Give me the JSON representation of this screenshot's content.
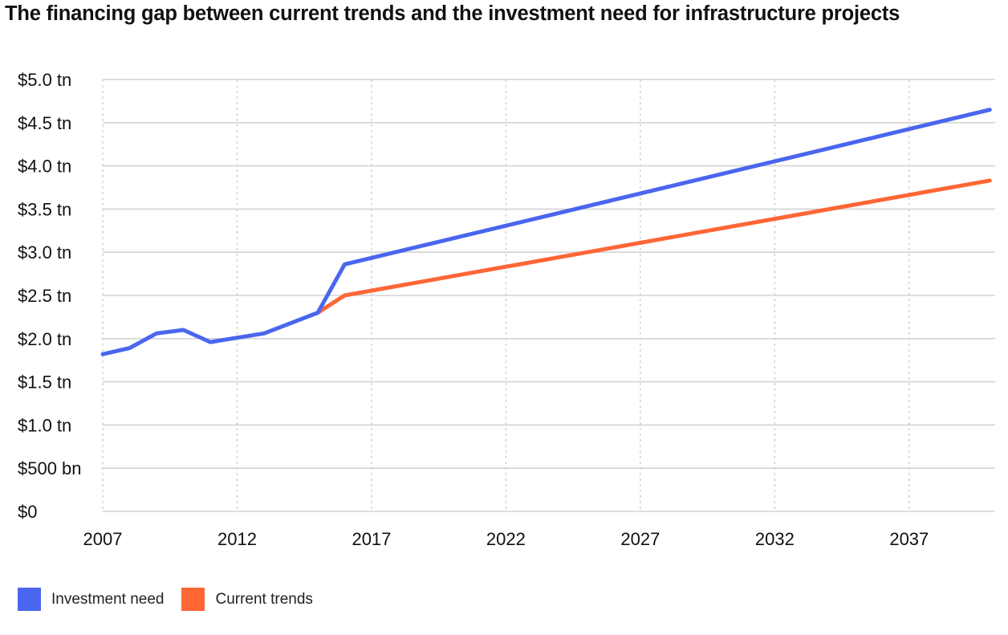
{
  "chart_data": {
    "type": "line",
    "title": "The financing gap between current trends and the investment need for infrastructure projects",
    "xlabel": "",
    "ylabel": "",
    "xlim": [
      2007,
      2040.2
    ],
    "ylim": [
      0,
      5.0
    ],
    "x_ticks": [
      2007,
      2012,
      2017,
      2022,
      2027,
      2032,
      2037
    ],
    "x_tick_labels": [
      "2007",
      "2012",
      "2017",
      "2022",
      "2027",
      "2032",
      "2037"
    ],
    "y_ticks": [
      0,
      0.5,
      1.0,
      1.5,
      2.0,
      2.5,
      3.0,
      3.5,
      4.0,
      4.5,
      5.0
    ],
    "y_tick_labels": [
      "$0",
      "$500 bn",
      "$1.0 tn",
      "$1.5 tn",
      "$2.0 tn",
      "$2.5 tn",
      "$3.0 tn",
      "$3.5 tn",
      "$4.0 tn",
      "$4.5 tn",
      "$5.0 tn"
    ],
    "grid": true,
    "legend_position": "bottom-left",
    "series": [
      {
        "name": "Investment need",
        "color": "#4a66ee",
        "x": [
          2007,
          2008,
          2009,
          2010,
          2011,
          2012,
          2013,
          2014,
          2015,
          2016,
          2040
        ],
        "values": [
          1.82,
          1.89,
          2.06,
          2.1,
          1.96,
          2.01,
          2.06,
          2.18,
          2.3,
          2.86,
          4.65
        ]
      },
      {
        "name": "Current trends",
        "color": "#fe6636",
        "x": [
          2015,
          2016,
          2040
        ],
        "values": [
          2.3,
          2.5,
          3.83
        ]
      }
    ]
  }
}
